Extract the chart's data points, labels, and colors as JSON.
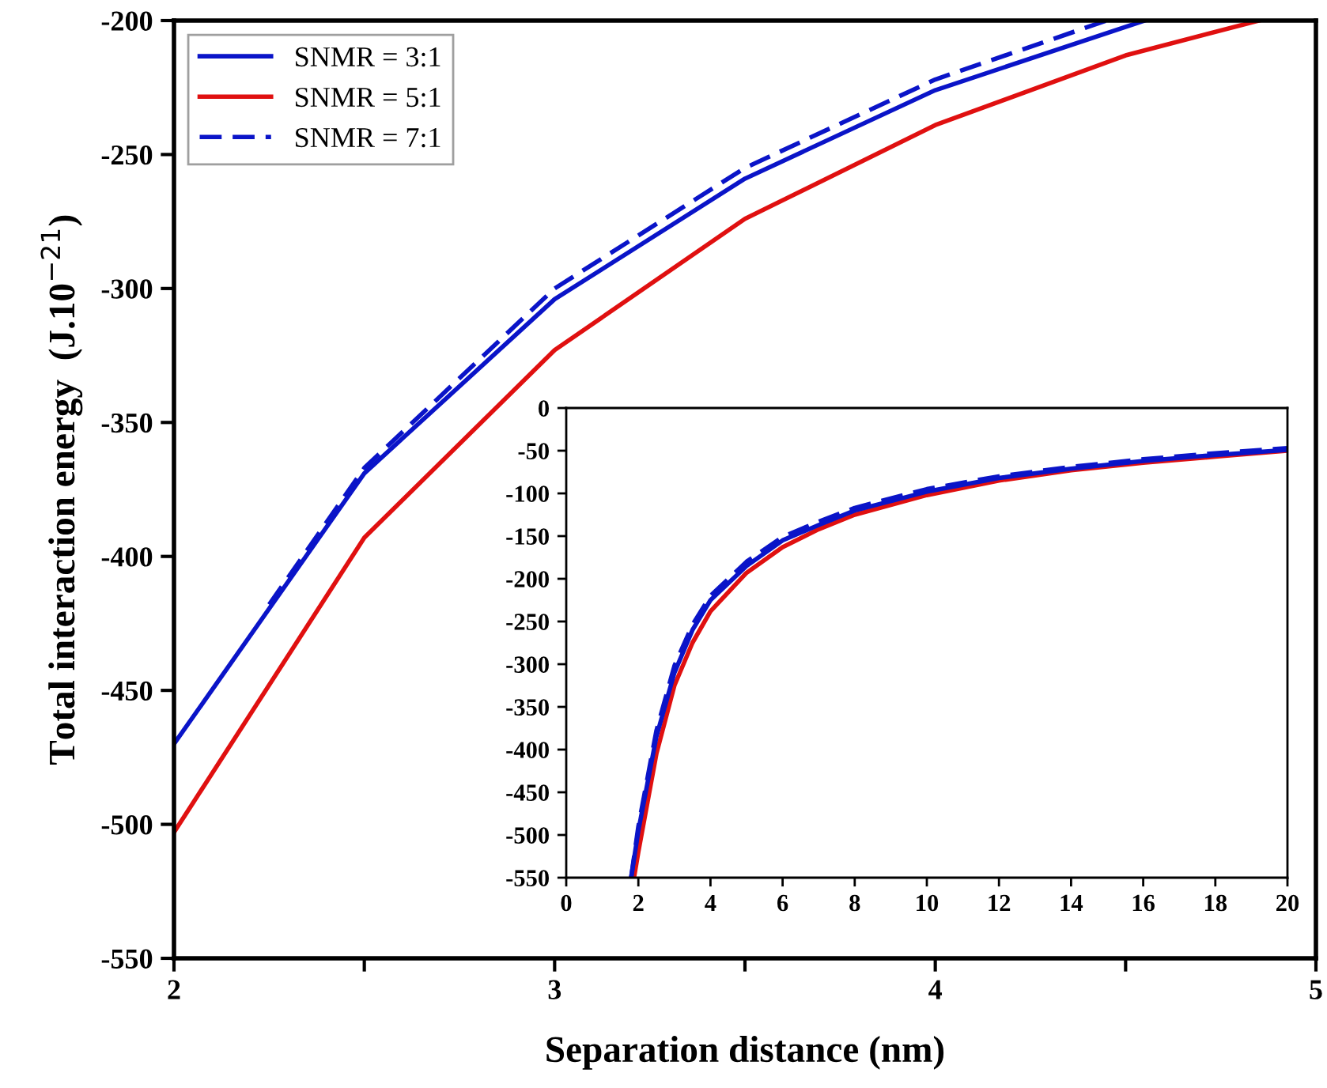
{
  "chart_data": [
    {
      "type": "line",
      "xlabel": "Separation distance (nm)",
      "ylabel": "Total interaction energy  (J.10$^{−21}$)",
      "xlim": [
        2,
        5
      ],
      "ylim": [
        -550,
        -200
      ],
      "xticks": [
        2,
        {
          "value": 2.5,
          "label": null
        },
        3,
        {
          "value": 3.5,
          "label": null
        },
        4,
        {
          "value": 4.5,
          "label": null
        },
        5
      ],
      "yticks": [
        -550,
        -500,
        -450,
        -400,
        -350,
        -300,
        -250,
        -200
      ],
      "legend": "top left",
      "grid": false,
      "series": [
        {
          "name": "SNMR = 3:1",
          "color": "#0a14c8",
          "line_style": "solid",
          "x": [
            2,
            2.5,
            3,
            3.5,
            4,
            4.55
          ],
          "values": [
            -470,
            -369,
            -304,
            -259,
            -226,
            -200
          ]
        },
        {
          "name": "SNMR = 5:1",
          "color": "#e01010",
          "line_style": "solid",
          "x": [
            2,
            2.5,
            3,
            3.5,
            4,
            4.5,
            4.85
          ],
          "values": [
            -503,
            -393,
            -323,
            -274,
            -239,
            -213,
            -200
          ]
        },
        {
          "name": "SNMR = 7:1",
          "color": "#0a14c8",
          "line_style": "dashed",
          "x": [
            2.25,
            2.5,
            3,
            3.5,
            4,
            4.45
          ],
          "values": [
            -418,
            -367,
            -300,
            -255,
            -222,
            -200
          ]
        }
      ]
    },
    {
      "type": "line",
      "xlim": [
        0,
        20
      ],
      "ylim": [
        -550,
        0
      ],
      "xticks": [
        0,
        2,
        4,
        6,
        8,
        10,
        12,
        14,
        16,
        18,
        20
      ],
      "yticks": [
        -550,
        -500,
        -450,
        -400,
        -350,
        -300,
        -250,
        -200,
        -150,
        -100,
        -50,
        0
      ],
      "grid": false,
      "series": [
        {
          "color": "#e01010",
          "line_style": "solid",
          "x": [
            1.88,
            2,
            2.5,
            3,
            3.5,
            4,
            5,
            6,
            7,
            8,
            10,
            12,
            14,
            16,
            18,
            20
          ],
          "values": [
            -550,
            -520,
            -405,
            -325,
            -275,
            -238,
            -193,
            -163,
            -142,
            -125,
            -102,
            -85,
            -73,
            -64,
            -57,
            -50
          ]
        },
        {
          "color": "#0a14c8",
          "line_style": "solid",
          "x": [
            1.8,
            2,
            2.5,
            3,
            3.5,
            4,
            5,
            6,
            7,
            8,
            10,
            12,
            14,
            16,
            18,
            20
          ],
          "values": [
            -550,
            -495,
            -385,
            -310,
            -260,
            -225,
            -185,
            -155,
            -137,
            -120,
            -98,
            -82,
            -71,
            -62,
            -55,
            -49
          ]
        },
        {
          "color": "#0a14c8",
          "line_style": "dashed",
          "x": [
            1.8,
            2,
            2.5,
            3,
            3.5,
            4,
            5,
            6,
            7,
            8,
            10,
            12,
            14,
            16,
            18,
            20
          ],
          "values": [
            -550,
            -490,
            -378,
            -302,
            -254,
            -220,
            -180,
            -151,
            -133,
            -117,
            -95,
            -80,
            -69,
            -60,
            -53,
            -47
          ]
        }
      ]
    }
  ]
}
